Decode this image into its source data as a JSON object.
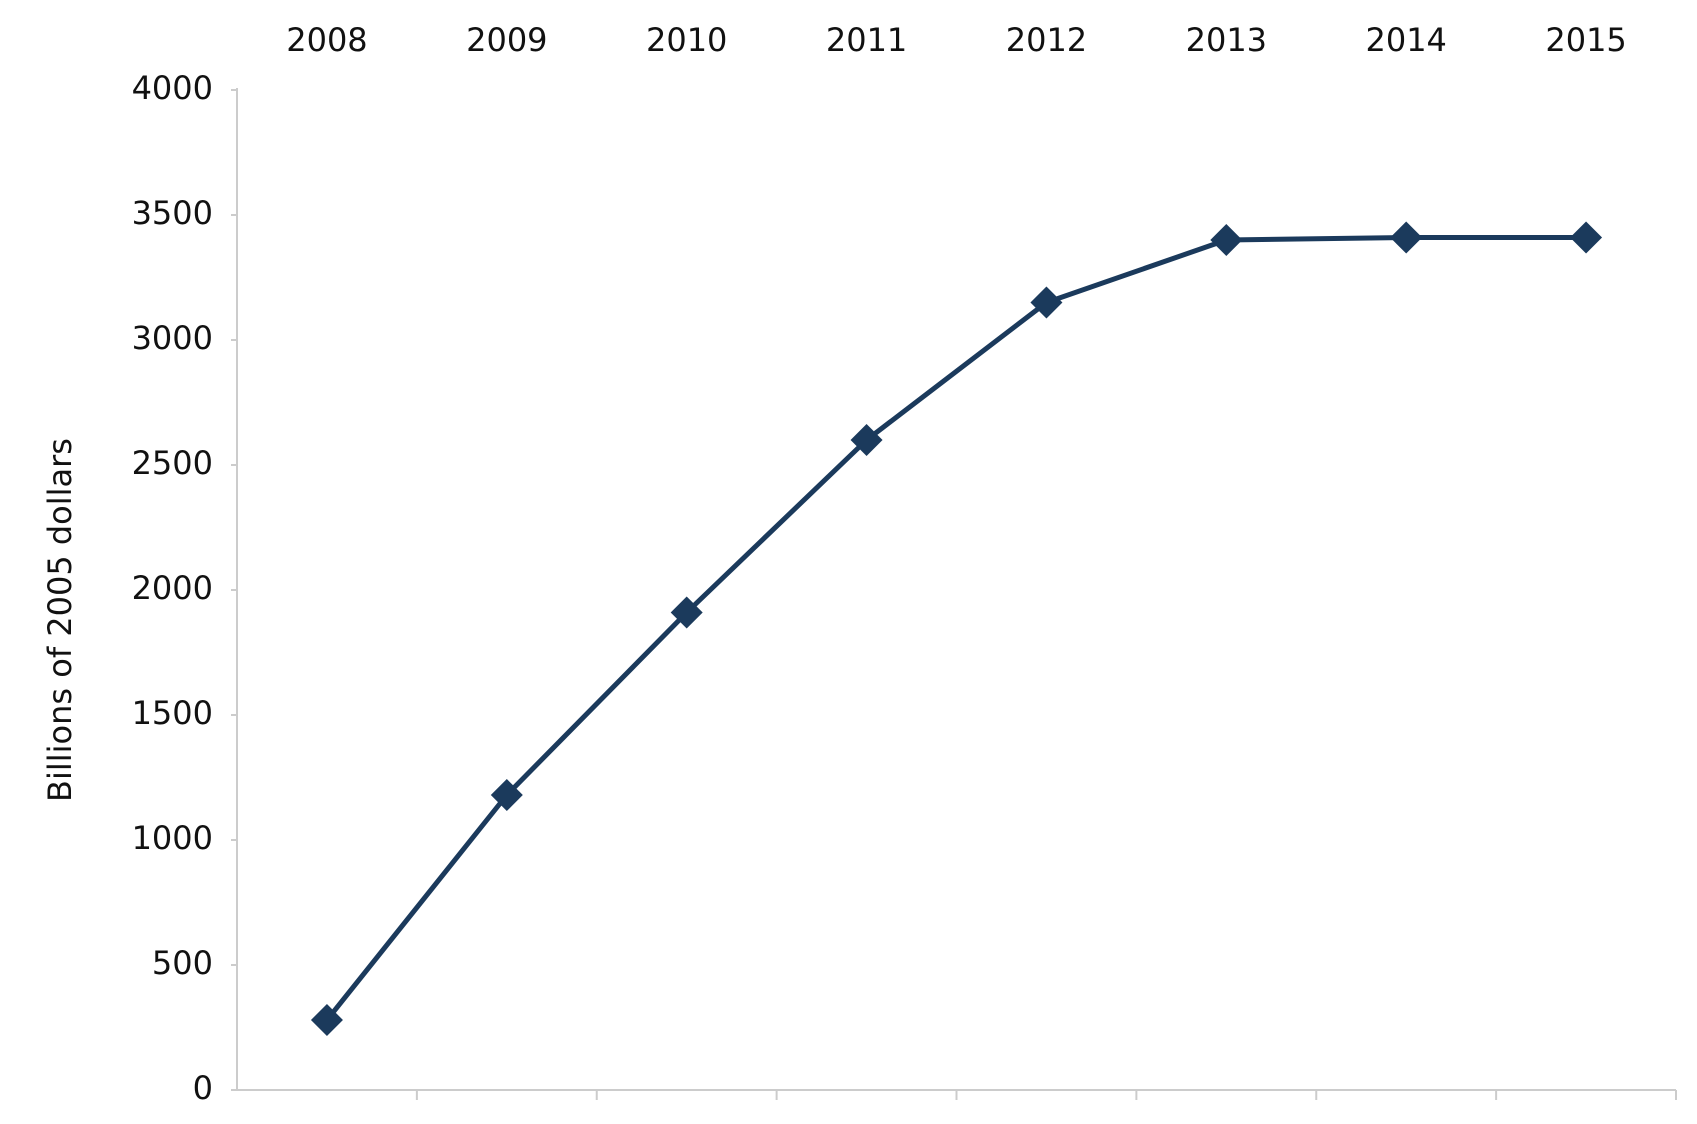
{
  "chart_data": {
    "type": "line",
    "y_label": "Billions of 2005 dollars",
    "categories": [
      "2008",
      "2009",
      "2010",
      "2011",
      "2012",
      "2013",
      "2014",
      "2015"
    ],
    "series": [
      {
        "color": "#1b3a5c",
        "values": [
          280,
          1180,
          1910,
          2600,
          3150,
          3400,
          3410,
          3410
        ]
      }
    ],
    "ylim": [
      0,
      4000
    ],
    "yticks": [
      0,
      500,
      1000,
      1500,
      2000,
      2500,
      3000,
      3500,
      4000
    ],
    "grid": false
  }
}
